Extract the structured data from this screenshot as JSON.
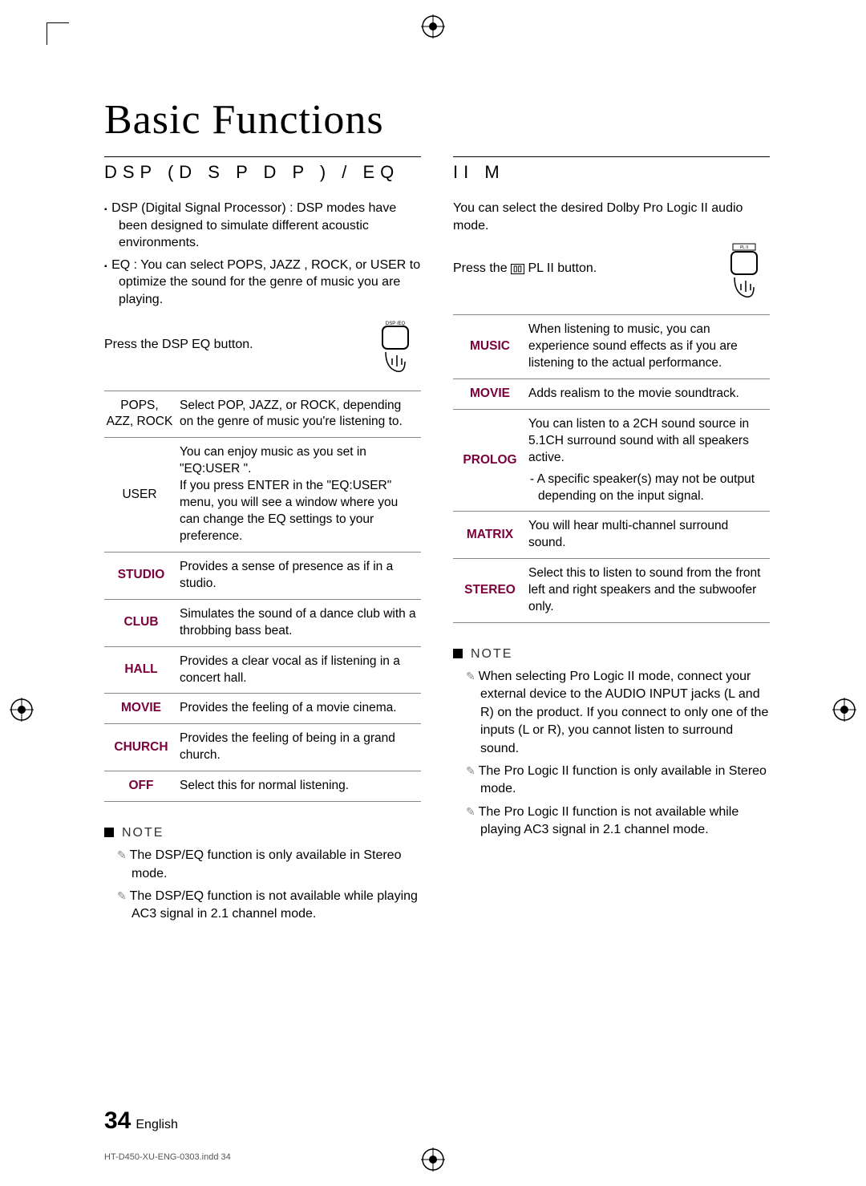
{
  "title": "Basic Functions",
  "left": {
    "heading": "DSP (D        S        P        D        P   ) / EQ",
    "bullets": [
      "DSP (Digital Signal Processor) : DSP modes have been designed to simulate different acoustic environments.",
      "EQ : You can select POPS, JAZZ , ROCK, or USER to optimize the sound for the genre of music you are playing."
    ],
    "press": "Press the DSP    EQ button.",
    "remote_label": "DSP /EQ",
    "rows": [
      {
        "k": "POPS, AZZ, ROCK",
        "style": "plain",
        "v": "Select POP, JAZZ, or ROCK, depending on the genre of music you're listening to."
      },
      {
        "k": "USER",
        "style": "plain",
        "v": "You can enjoy music as you set in \"EQ:USER \".\nIf you press ENTER in the \"EQ:USER\" menu, you will see a window where you can change the EQ settings to your preference."
      },
      {
        "k": "STUDIO",
        "style": "accent",
        "v": "Provides a sense of presence as if in a studio."
      },
      {
        "k": "CLUB",
        "style": "accent",
        "v": "Simulates the sound of a dance club with a throbbing bass beat."
      },
      {
        "k": "HALL",
        "style": "accent",
        "v": "Provides a clear vocal as if listening in a concert hall."
      },
      {
        "k": "MOVIE",
        "style": "accent",
        "v": "Provides the feeling of a movie cinema."
      },
      {
        "k": "CHURCH",
        "style": "accent",
        "v": "Provides the feeling of being in a grand church."
      },
      {
        "k": "OFF",
        "style": "accent",
        "v": "Select this for normal listening."
      }
    ],
    "note_head": "NOTE",
    "notes": [
      "The DSP/EQ function is only available in Stereo mode.",
      "The DSP/EQ function is not available while playing AC3 signal in 2.1 channel mode."
    ]
  },
  "right": {
    "heading": "      II M",
    "intro": "You can select the desired Dolby Pro Logic II audio mode.",
    "press_prefix": "Press the ",
    "press_suffix": " PL II  button.",
    "remote_label": "PL II",
    "rows": [
      {
        "k": "MUSIC",
        "v": "When listening to music, you can experience sound effects as if you are listening to the actual performance."
      },
      {
        "k": "MOVIE",
        "v": "Adds realism to the movie soundtrack."
      },
      {
        "k": "PROLOG",
        "v": "You can listen to a 2CH sound source in 5.1CH surround sound with all speakers active.",
        "sub": "- A specific speaker(s) may not be output depending on the input signal."
      },
      {
        "k": "MATRIX",
        "v": "You will hear multi-channel surround sound."
      },
      {
        "k": "STEREO",
        "v": "Select this to listen to sound from the front left and right speakers and the subwoofer only."
      }
    ],
    "note_head": "NOTE",
    "notes": [
      "When selecting Pro Logic II mode, connect your external device to the AUDIO INPUT jacks (L and R) on the product. If you connect to only one of the inputs (L or R), you cannot listen to surround sound.",
      "The Pro Logic II function is only available in Stereo mode.",
      "The Pro Logic II function is not available while playing AC3 signal in 2.1 channel mode."
    ]
  },
  "page_number": "34",
  "page_lang": "English",
  "footer_left": "HT-D450-XU-ENG-0303.indd   34"
}
